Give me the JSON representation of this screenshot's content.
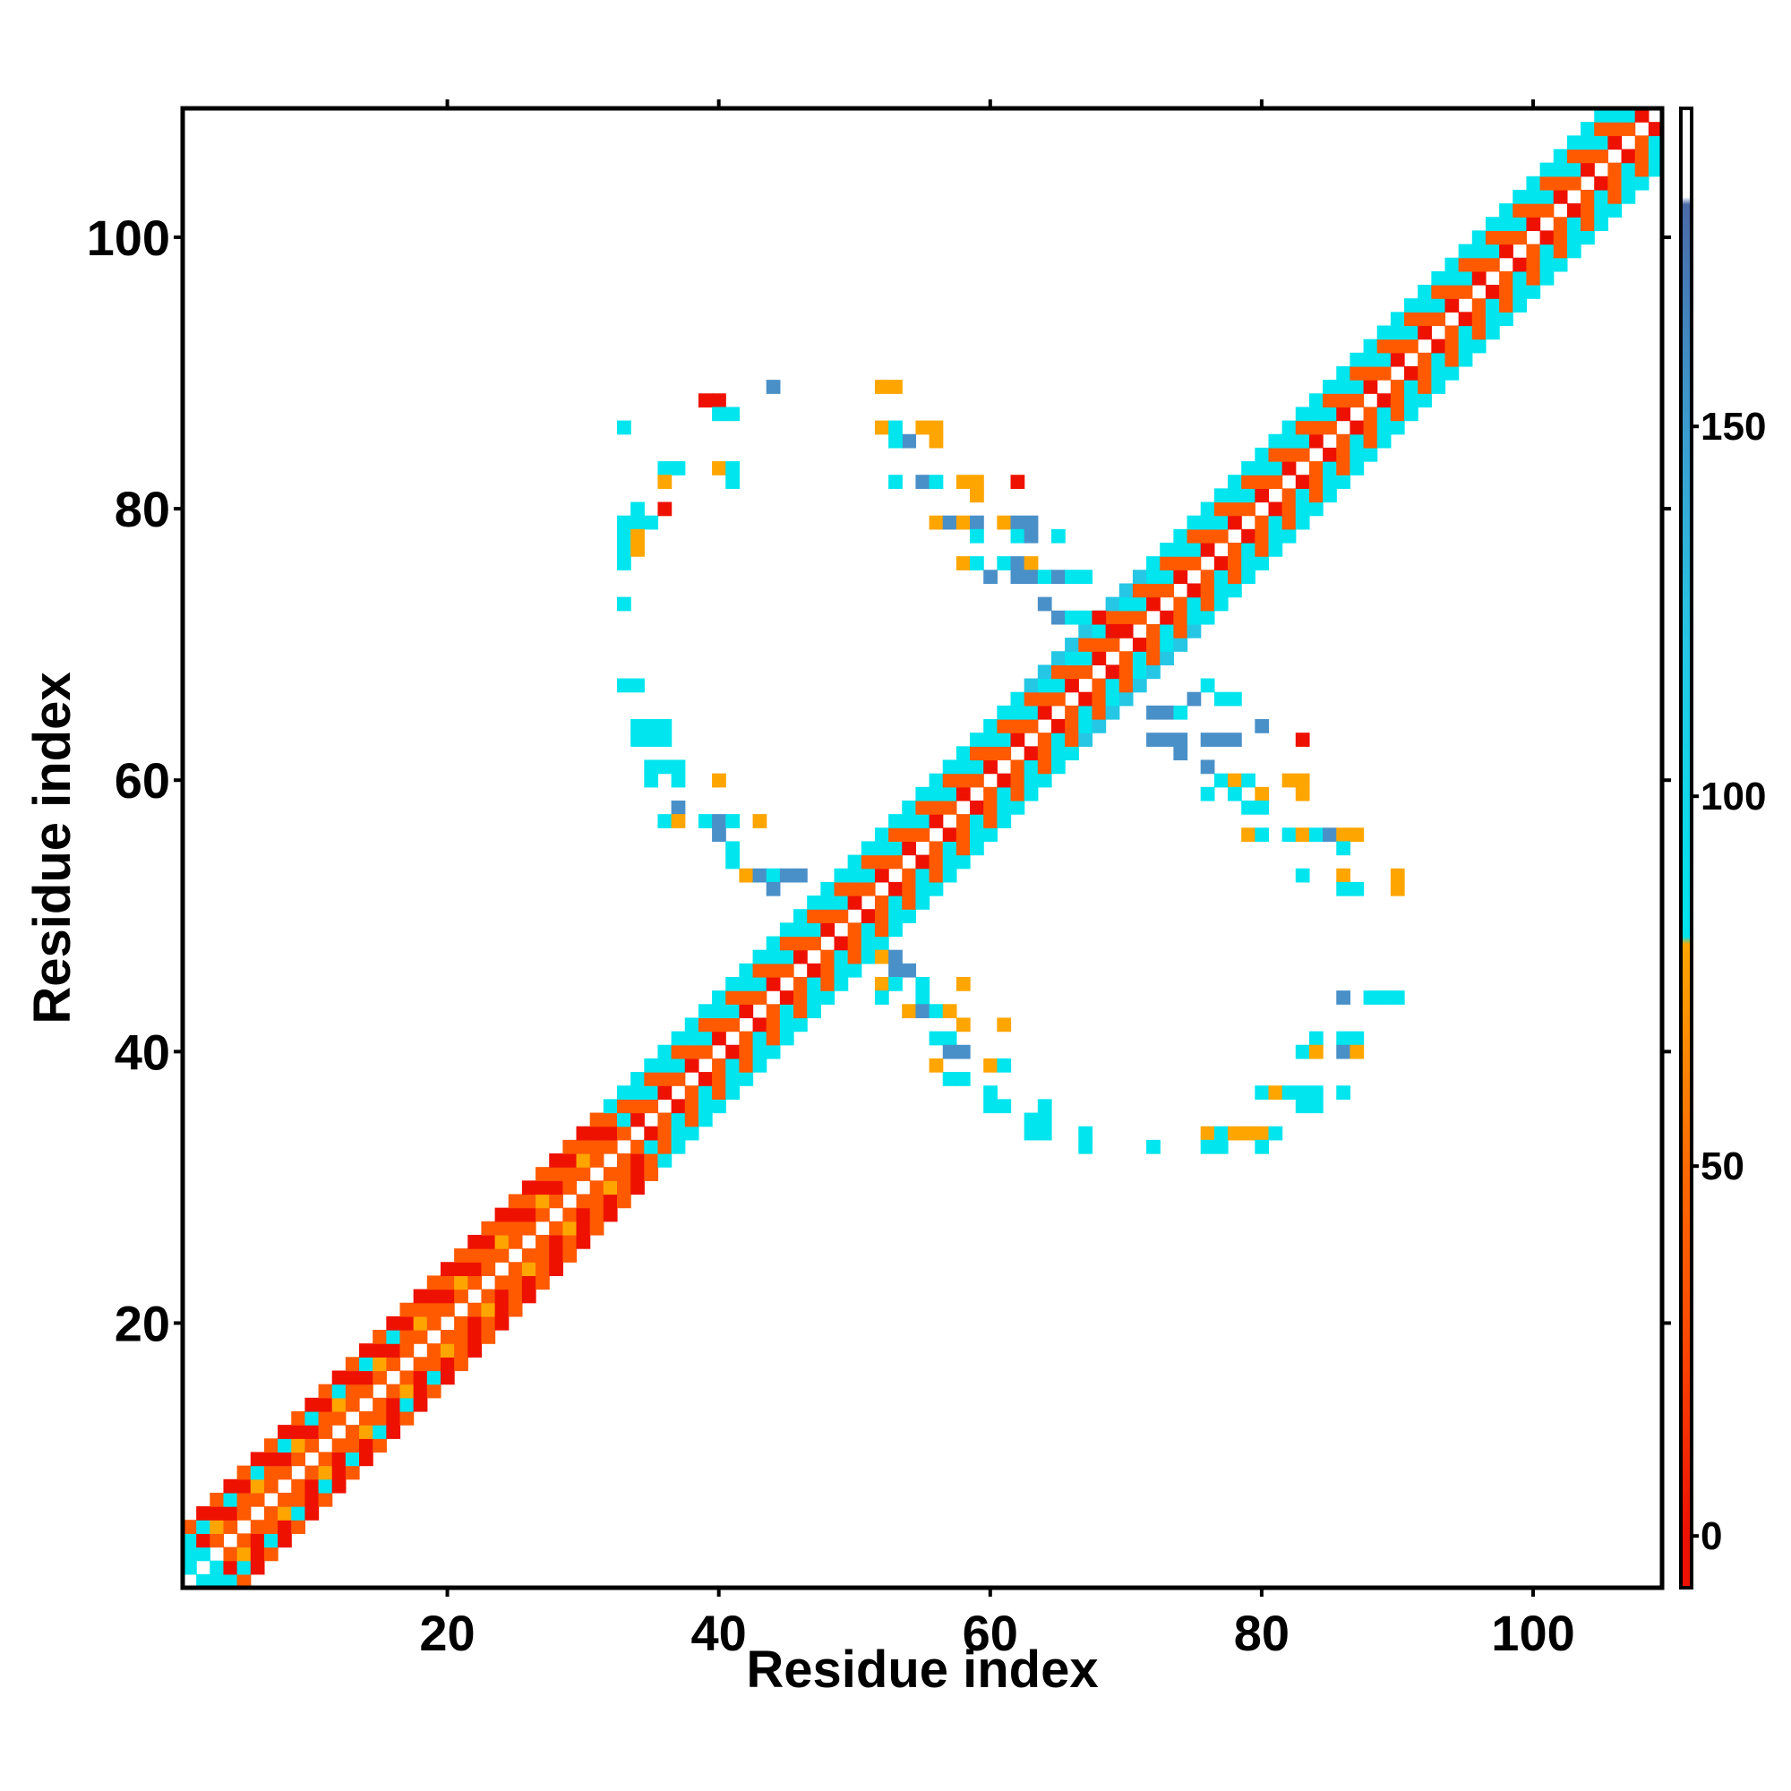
{
  "chart_data": {
    "type": "heatmap",
    "xlabel": "Residue index",
    "ylabel": "Residue index",
    "xlim": [
      1,
      109
    ],
    "ylim": [
      1,
      109
    ],
    "x_ticks": [
      20,
      40,
      60,
      80,
      100
    ],
    "y_ticks": [
      20,
      40,
      60,
      80,
      100
    ],
    "colorbar": {
      "ticks": [
        0,
        50,
        100,
        150
      ],
      "range": [
        -7,
        193
      ],
      "stops": [
        {
          "value": -7,
          "color": "#ee1100"
        },
        {
          "value": 0,
          "color": "#ee1100"
        },
        {
          "value": 30,
          "color": "#ff4f00"
        },
        {
          "value": 50,
          "color": "#ff6a00"
        },
        {
          "value": 80,
          "color": "#ffa500"
        },
        {
          "value": 81,
          "color": "#00e5ee"
        },
        {
          "value": 120,
          "color": "#25c7e5"
        },
        {
          "value": 150,
          "color": "#3b9ccf"
        },
        {
          "value": 180,
          "color": "#4a6aa8"
        },
        {
          "value": 181,
          "color": "#ffffff"
        },
        {
          "value": 193,
          "color": "#ffffff"
        }
      ]
    },
    "colors": {
      "red": "#ee1100",
      "orange_red": "#ff5a00",
      "orange": "#ffa500",
      "cyan": "#00e5ee",
      "light_blue": "#25c7e5",
      "steel_blue": "#4a90c8"
    },
    "grid": false,
    "diagonal_band": {
      "description_values": "contact values along |i-j|<=4, alternating red/orange near N-term and cyan/orange from residue 35 onward"
    },
    "offdiag_contacts": [
      [
        44,
        89,
        "b"
      ],
      [
        39,
        88,
        "r"
      ],
      [
        40,
        88,
        "r"
      ],
      [
        40,
        87,
        "c"
      ],
      [
        41,
        87,
        "c"
      ],
      [
        33,
        86,
        "c"
      ],
      [
        52,
        89,
        "o"
      ],
      [
        53,
        89,
        "o"
      ],
      [
        52,
        86,
        "o"
      ],
      [
        53,
        86,
        "c"
      ],
      [
        55,
        86,
        "o"
      ],
      [
        56,
        86,
        "o"
      ],
      [
        56,
        85,
        "o"
      ],
      [
        54,
        85,
        "b"
      ],
      [
        53,
        85,
        "c"
      ],
      [
        36,
        83,
        "c"
      ],
      [
        37,
        83,
        "c"
      ],
      [
        40,
        83,
        "o"
      ],
      [
        41,
        83,
        "c"
      ],
      [
        41,
        82,
        "c"
      ],
      [
        36,
        82,
        "o"
      ],
      [
        53,
        82,
        "c"
      ],
      [
        55,
        82,
        "b"
      ],
      [
        56,
        82,
        "c"
      ],
      [
        58,
        82,
        "o"
      ],
      [
        59,
        82,
        "o"
      ],
      [
        59,
        81,
        "o"
      ],
      [
        62,
        82,
        "r"
      ],
      [
        33,
        79,
        "c"
      ],
      [
        34,
        79,
        "c"
      ],
      [
        35,
        79,
        "c"
      ],
      [
        36,
        80,
        "r"
      ],
      [
        34,
        80,
        "c"
      ],
      [
        33,
        78,
        "c"
      ],
      [
        34,
        78,
        "o"
      ],
      [
        33,
        77,
        "c"
      ],
      [
        34,
        77,
        "o"
      ],
      [
        33,
        76,
        "c"
      ],
      [
        33,
        73,
        "c"
      ],
      [
        33,
        67,
        "c"
      ],
      [
        34,
        67,
        "c"
      ],
      [
        34,
        64,
        "c"
      ],
      [
        35,
        64,
        "c"
      ],
      [
        36,
        64,
        "c"
      ],
      [
        34,
        63,
        "c"
      ],
      [
        35,
        63,
        "c"
      ],
      [
        36,
        63,
        "c"
      ],
      [
        35,
        61,
        "c"
      ],
      [
        36,
        61,
        "c"
      ],
      [
        37,
        61,
        "c"
      ],
      [
        37,
        60,
        "c"
      ],
      [
        35,
        60,
        "c"
      ],
      [
        40,
        60,
        "o"
      ],
      [
        37,
        58,
        "b"
      ],
      [
        36,
        57,
        "c"
      ],
      [
        37,
        57,
        "o"
      ],
      [
        39,
        57,
        "c"
      ],
      [
        40,
        57,
        "b"
      ],
      [
        41,
        57,
        "c"
      ],
      [
        40,
        56,
        "b"
      ],
      [
        43,
        57,
        "o"
      ],
      [
        41,
        54,
        "c"
      ],
      [
        41,
        55,
        "c"
      ],
      [
        42,
        53,
        "o"
      ],
      [
        43,
        53,
        "b"
      ],
      [
        44,
        53,
        "c"
      ],
      [
        45,
        53,
        "b"
      ],
      [
        44,
        52,
        "b"
      ],
      [
        46,
        53,
        "b"
      ],
      [
        56,
        79,
        "o"
      ],
      [
        57,
        79,
        "b"
      ],
      [
        58,
        79,
        "o"
      ],
      [
        59,
        79,
        "b"
      ],
      [
        61,
        79,
        "o"
      ],
      [
        62,
        79,
        "b"
      ],
      [
        63,
        79,
        "b"
      ],
      [
        59,
        78,
        "c"
      ],
      [
        62,
        78,
        "c"
      ],
      [
        63,
        78,
        "b"
      ],
      [
        65,
        78,
        "c"
      ],
      [
        58,
        76,
        "o"
      ],
      [
        59,
        76,
        "c"
      ],
      [
        61,
        76,
        "c"
      ],
      [
        62,
        76,
        "b"
      ],
      [
        63,
        76,
        "o"
      ],
      [
        60,
        75,
        "b"
      ],
      [
        62,
        75,
        "b"
      ],
      [
        63,
        75,
        "b"
      ],
      [
        64,
        75,
        "c"
      ],
      [
        65,
        75,
        "b"
      ],
      [
        66,
        75,
        "c"
      ],
      [
        67,
        75,
        "c"
      ],
      [
        64,
        73,
        "b"
      ],
      [
        65,
        72,
        "b"
      ],
      [
        66,
        72,
        "c"
      ],
      [
        67,
        72,
        "c"
      ],
      [
        68,
        72,
        "r"
      ],
      [
        69,
        71,
        "r"
      ],
      [
        70,
        71,
        "r"
      ],
      [
        72,
        65,
        "b"
      ],
      [
        73,
        65,
        "b"
      ],
      [
        74,
        65,
        "c"
      ],
      [
        75,
        66,
        "b"
      ],
      [
        76,
        67,
        "c"
      ],
      [
        77,
        66,
        "c"
      ],
      [
        78,
        66,
        "c"
      ],
      [
        72,
        63,
        "b"
      ],
      [
        73,
        63,
        "b"
      ],
      [
        74,
        63,
        "b"
      ],
      [
        76,
        63,
        "b"
      ],
      [
        77,
        63,
        "b"
      ],
      [
        78,
        63,
        "b"
      ],
      [
        80,
        64,
        "b"
      ],
      [
        83,
        63,
        "r"
      ],
      [
        74,
        62,
        "b"
      ],
      [
        76,
        61,
        "b"
      ],
      [
        77,
        60,
        "c"
      ],
      [
        78,
        60,
        "o"
      ],
      [
        79,
        60,
        "c"
      ],
      [
        76,
        59,
        "c"
      ],
      [
        78,
        59,
        "c"
      ],
      [
        80,
        59,
        "o"
      ],
      [
        82,
        60,
        "o"
      ],
      [
        83,
        60,
        "o"
      ],
      [
        83,
        59,
        "o"
      ],
      [
        79,
        58,
        "c"
      ],
      [
        80,
        58,
        "c"
      ],
      [
        79,
        56,
        "o"
      ],
      [
        80,
        56,
        "c"
      ],
      [
        82,
        56,
        "c"
      ],
      [
        83,
        56,
        "o"
      ],
      [
        84,
        56,
        "c"
      ],
      [
        85,
        56,
        "b"
      ],
      [
        86,
        56,
        "o"
      ],
      [
        87,
        56,
        "o"
      ],
      [
        86,
        55,
        "c"
      ],
      [
        83,
        53,
        "c"
      ],
      [
        86,
        53,
        "o"
      ],
      [
        86,
        52,
        "c"
      ],
      [
        87,
        52,
        "c"
      ],
      [
        90,
        53,
        "o"
      ],
      [
        90,
        52,
        "o"
      ],
      [
        51,
        47,
        "c"
      ],
      [
        52,
        47,
        "o"
      ],
      [
        53,
        47,
        "b"
      ],
      [
        53,
        46,
        "b"
      ],
      [
        54,
        46,
        "b"
      ],
      [
        52,
        45,
        "o"
      ],
      [
        53,
        45,
        "c"
      ],
      [
        55,
        45,
        "c"
      ],
      [
        58,
        45,
        "o"
      ],
      [
        52,
        44,
        "c"
      ],
      [
        55,
        44,
        "c"
      ],
      [
        54,
        43,
        "o"
      ],
      [
        55,
        43,
        "b"
      ],
      [
        56,
        43,
        "c"
      ],
      [
        57,
        43,
        "o"
      ],
      [
        58,
        42,
        "o"
      ],
      [
        61,
        42,
        "o"
      ],
      [
        56,
        41,
        "c"
      ],
      [
        57,
        41,
        "c"
      ],
      [
        57,
        40,
        "b"
      ],
      [
        58,
        40,
        "b"
      ],
      [
        56,
        39,
        "o"
      ],
      [
        57,
        38,
        "c"
      ],
      [
        58,
        38,
        "c"
      ],
      [
        60,
        39,
        "o"
      ],
      [
        61,
        39,
        "c"
      ],
      [
        60,
        37,
        "c"
      ],
      [
        60,
        36,
        "c"
      ],
      [
        61,
        36,
        "c"
      ],
      [
        63,
        35,
        "c"
      ],
      [
        64,
        35,
        "c"
      ],
      [
        64,
        36,
        "c"
      ],
      [
        63,
        34,
        "c"
      ],
      [
        64,
        34,
        "c"
      ],
      [
        67,
        34,
        "c"
      ],
      [
        67,
        33,
        "c"
      ],
      [
        72,
        33,
        "c"
      ],
      [
        76,
        34,
        "o"
      ],
      [
        77,
        34,
        "c"
      ],
      [
        78,
        34,
        "o"
      ],
      [
        79,
        34,
        "o"
      ],
      [
        80,
        34,
        "o"
      ],
      [
        81,
        34,
        "c"
      ],
      [
        76,
        33,
        "c"
      ],
      [
        77,
        33,
        "c"
      ],
      [
        80,
        33,
        "c"
      ],
      [
        80,
        37,
        "c"
      ],
      [
        81,
        37,
        "o"
      ],
      [
        82,
        37,
        "c"
      ],
      [
        83,
        37,
        "c"
      ],
      [
        84,
        37,
        "c"
      ],
      [
        83,
        36,
        "c"
      ],
      [
        84,
        36,
        "c"
      ],
      [
        83,
        40,
        "c"
      ],
      [
        84,
        41,
        "c"
      ],
      [
        84,
        40,
        "o"
      ],
      [
        86,
        41,
        "c"
      ],
      [
        87,
        41,
        "c"
      ],
      [
        86,
        40,
        "b"
      ],
      [
        87,
        40,
        "o"
      ],
      [
        86,
        37,
        "c"
      ],
      [
        86,
        44,
        "b"
      ],
      [
        88,
        44,
        "c"
      ],
      [
        89,
        44,
        "c"
      ],
      [
        90,
        44,
        "c"
      ]
    ]
  }
}
